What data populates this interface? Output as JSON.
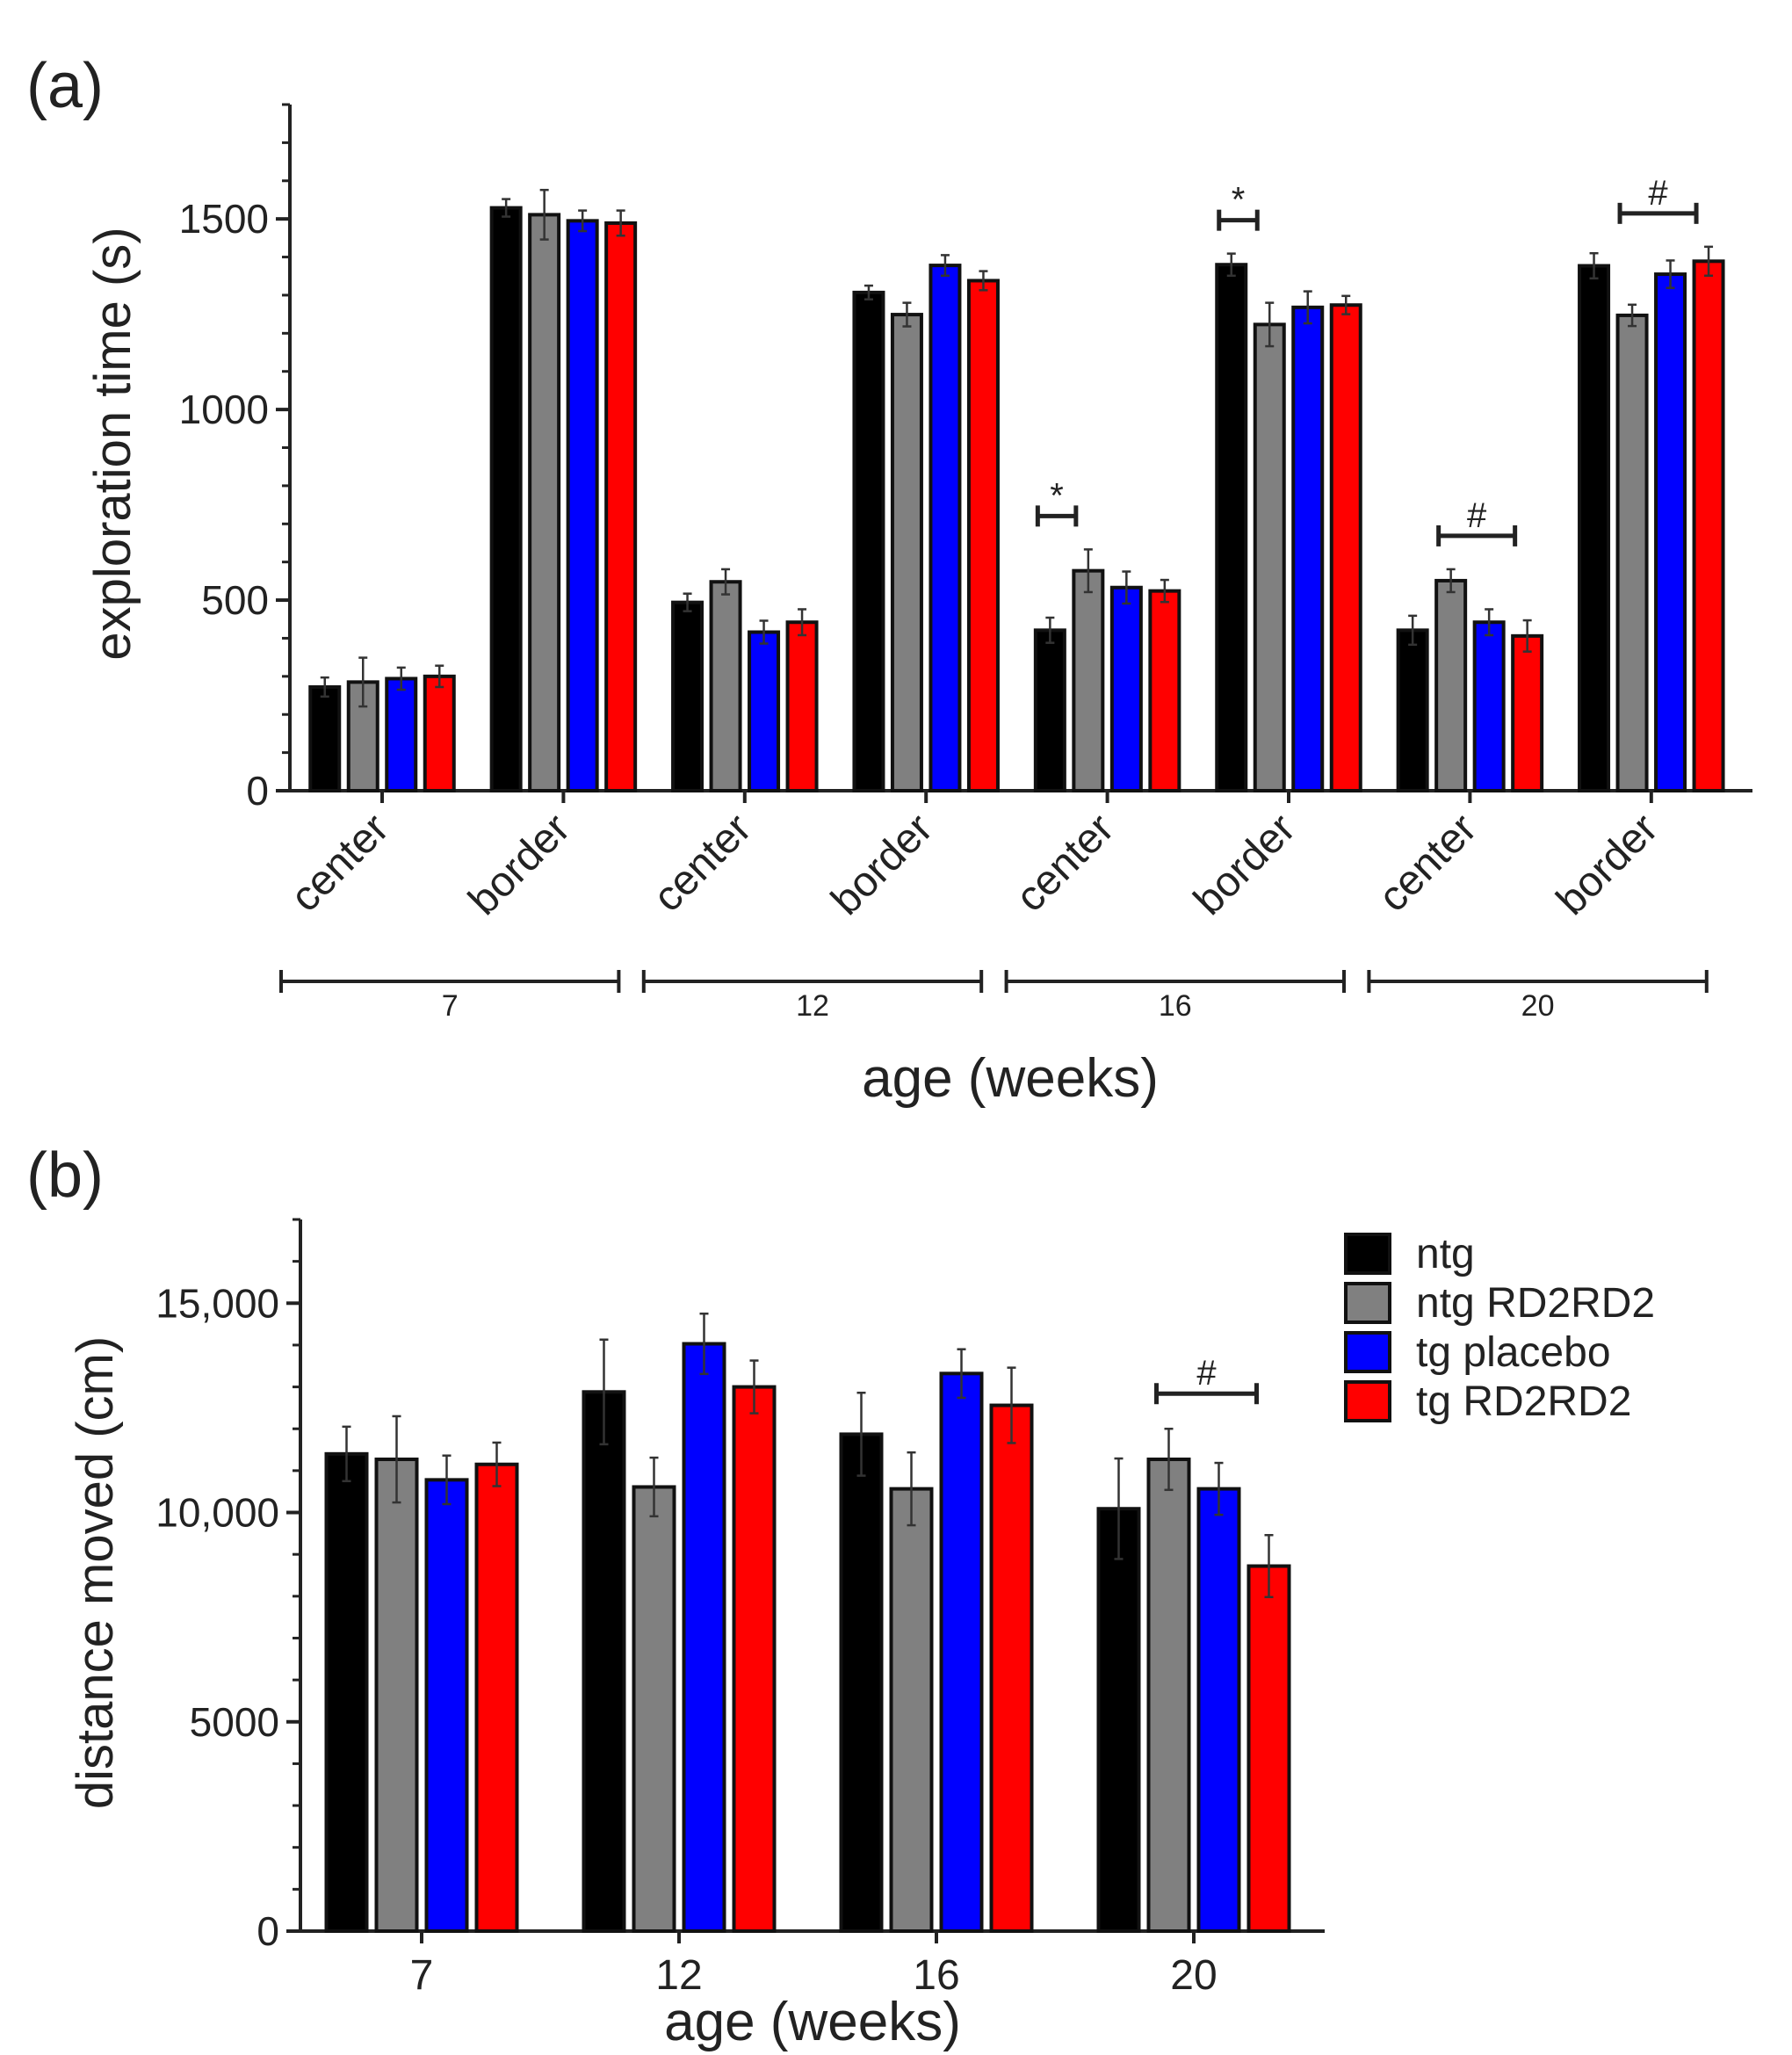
{
  "chart_data": [
    {
      "panel_label": "(a)",
      "type": "bar",
      "ylabel": "exploration time (s)",
      "xlabel": "age (weeks)",
      "ylim": [
        0,
        1800
      ],
      "yticks": [
        "0",
        "500",
        "1000",
        "1500"
      ],
      "ytick_values": [
        0,
        500,
        1000,
        1500
      ],
      "grid": false,
      "categories": [
        "center",
        "border",
        "center",
        "border",
        "center",
        "border",
        "center",
        "border"
      ],
      "age_groups": [
        {
          "label": "7",
          "categories": [
            0,
            1
          ]
        },
        {
          "label": "12",
          "categories": [
            2,
            3
          ]
        },
        {
          "label": "16",
          "categories": [
            4,
            5
          ]
        },
        {
          "label": "20",
          "categories": [
            6,
            7
          ]
        }
      ],
      "series": [
        {
          "name": "ntg",
          "color": "#000000",
          "values": [
            272,
            1529,
            494,
            1307,
            421,
            1380,
            421,
            1377
          ],
          "errors": [
            25,
            23,
            23,
            18,
            33,
            29,
            38,
            33
          ]
        },
        {
          "name": "ntg RD2RD2",
          "color": "#808080",
          "values": [
            285,
            1511,
            548,
            1249,
            577,
            1223,
            551,
            1247
          ],
          "errors": [
            64,
            65,
            33,
            31,
            56,
            57,
            30,
            28
          ]
        },
        {
          "name": "tg placebo",
          "color": "#0000ff",
          "values": [
            294,
            1495,
            416,
            1378,
            533,
            1268,
            442,
            1355
          ],
          "errors": [
            29,
            27,
            30,
            27,
            42,
            42,
            34,
            36
          ]
        },
        {
          "name": "tg RD2RD2",
          "color": "#ff0000",
          "values": [
            300,
            1489,
            442,
            1338,
            524,
            1274,
            406,
            1389
          ],
          "errors": [
            28,
            33,
            34,
            25,
            29,
            24,
            41,
            38
          ]
        }
      ],
      "annotations": [
        {
          "category": 4,
          "from_series": 0,
          "to_series": 1,
          "label": "*"
        },
        {
          "category": 5,
          "from_series": 0,
          "to_series": 1,
          "label": "*"
        },
        {
          "category": 6,
          "from_series": 1,
          "to_series": 3,
          "label": "#"
        },
        {
          "category": 7,
          "from_series": 1,
          "to_series": 3,
          "label": "#"
        }
      ]
    },
    {
      "panel_label": "(b)",
      "type": "bar",
      "ylabel": "distance moved (cm)",
      "xlabel": "age (weeks)",
      "ylim": [
        0,
        17000
      ],
      "yticks": [
        "0",
        "5000",
        "10,000",
        "15,000"
      ],
      "ytick_values": [
        0,
        5000,
        10000,
        15000
      ],
      "grid": false,
      "legend_position": "top-right",
      "categories": [
        "7",
        "12",
        "16",
        "20"
      ],
      "series": [
        {
          "name": "ntg",
          "color": "#000000",
          "values": [
            11400,
            12880,
            11870,
            10090
          ],
          "errors": [
            650,
            1250,
            990,
            1200
          ]
        },
        {
          "name": "ntg RD2RD2",
          "color": "#808080",
          "values": [
            11270,
            10610,
            10565,
            11270
          ],
          "errors": [
            1030,
            700,
            870,
            730
          ]
        },
        {
          "name": "tg placebo",
          "color": "#0000ff",
          "values": [
            10780,
            14030,
            13320,
            10565
          ],
          "errors": [
            580,
            720,
            580,
            620
          ]
        },
        {
          "name": "tg RD2RD2",
          "color": "#ff0000",
          "values": [
            11150,
            13000,
            12560,
            8720
          ],
          "errors": [
            520,
            630,
            900,
            740
          ]
        }
      ],
      "annotations": [
        {
          "category": 3,
          "from_series": 1,
          "to_series": 3,
          "label": "#"
        }
      ]
    }
  ]
}
